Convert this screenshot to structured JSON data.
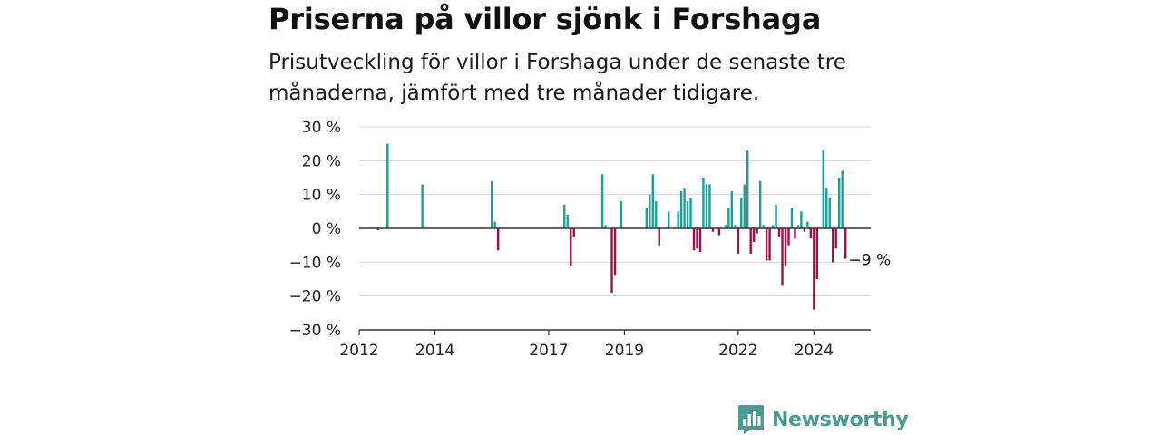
{
  "header": {
    "title": "Priserna på villor sjönk i Forshaga",
    "subtitle": "Prisutveckling för villor i Forshaga under de senaste tre månaderna, jämfört med tre månader tidigare."
  },
  "chart_data": {
    "type": "bar",
    "title": "Priserna på villor sjönk i Forshaga",
    "subtitle": "Prisutveckling för villor i Forshaga under de senaste tre månaderna, jämfört med tre månader tidigare.",
    "unit": "%",
    "xlabel": "",
    "ylabel": "",
    "ylim": [
      -30,
      30
    ],
    "xlim": [
      "2012-01",
      "2025-07"
    ],
    "y_ticks": [
      30,
      20,
      10,
      0,
      -10,
      -20,
      -30
    ],
    "y_tick_labels": [
      "30 %",
      "20 %",
      "10 %",
      "0 %",
      "−10 %",
      "−20 %",
      "−30 %"
    ],
    "x_ticks": [
      "2012-01",
      "2014-01",
      "2017-01",
      "2019-01",
      "2022-01",
      "2024-01"
    ],
    "x_tick_labels": [
      "2012",
      "2014",
      "2017",
      "2019",
      "2022",
      "2024"
    ],
    "grid": true,
    "colors": {
      "positive": "#1aa096",
      "negative": "#a30d45",
      "grid": "#d9d9d9",
      "axis": "#333333",
      "zero": "#333333"
    },
    "annotation": {
      "text": "−9 %",
      "date": "2025-04",
      "value": -9
    },
    "points": [
      {
        "date": "2012-07",
        "value": -0.5
      },
      {
        "date": "2012-10",
        "value": 25
      },
      {
        "date": "2013-09",
        "value": 13
      },
      {
        "date": "2015-07",
        "value": 14
      },
      {
        "date": "2015-08",
        "value": 2
      },
      {
        "date": "2015-09",
        "value": -6.5
      },
      {
        "date": "2017-06",
        "value": 7
      },
      {
        "date": "2017-07",
        "value": 4
      },
      {
        "date": "2017-08",
        "value": -11
      },
      {
        "date": "2017-09",
        "value": -2.5
      },
      {
        "date": "2018-06",
        "value": 16
      },
      {
        "date": "2018-07",
        "value": 1
      },
      {
        "date": "2018-09",
        "value": -19
      },
      {
        "date": "2018-10",
        "value": -14
      },
      {
        "date": "2018-12",
        "value": 8
      },
      {
        "date": "2019-08",
        "value": 6
      },
      {
        "date": "2019-09",
        "value": 10
      },
      {
        "date": "2019-10",
        "value": 16
      },
      {
        "date": "2019-11",
        "value": 8
      },
      {
        "date": "2019-12",
        "value": -5
      },
      {
        "date": "2020-03",
        "value": 5
      },
      {
        "date": "2020-06",
        "value": 5
      },
      {
        "date": "2020-07",
        "value": 11
      },
      {
        "date": "2020-08",
        "value": 12
      },
      {
        "date": "2020-09",
        "value": 8
      },
      {
        "date": "2020-10",
        "value": 9
      },
      {
        "date": "2020-11",
        "value": -6.5
      },
      {
        "date": "2020-12",
        "value": -6
      },
      {
        "date": "2021-01",
        "value": -7
      },
      {
        "date": "2021-02",
        "value": 15
      },
      {
        "date": "2021-03",
        "value": 13
      },
      {
        "date": "2021-04",
        "value": 13
      },
      {
        "date": "2021-05",
        "value": -1
      },
      {
        "date": "2021-07",
        "value": -2
      },
      {
        "date": "2021-09",
        "value": 1
      },
      {
        "date": "2021-10",
        "value": 6
      },
      {
        "date": "2021-11",
        "value": 11
      },
      {
        "date": "2021-12",
        "value": 1
      },
      {
        "date": "2022-01",
        "value": -7.5
      },
      {
        "date": "2022-02",
        "value": 9
      },
      {
        "date": "2022-03",
        "value": 13
      },
      {
        "date": "2022-04",
        "value": 23
      },
      {
        "date": "2022-05",
        "value": -7.5
      },
      {
        "date": "2022-06",
        "value": -4
      },
      {
        "date": "2022-07",
        "value": -1.5
      },
      {
        "date": "2022-08",
        "value": 14
      },
      {
        "date": "2022-09",
        "value": 1
      },
      {
        "date": "2022-10",
        "value": -9.5
      },
      {
        "date": "2022-11",
        "value": -9.5
      },
      {
        "date": "2022-12",
        "value": 1
      },
      {
        "date": "2023-01",
        "value": 7
      },
      {
        "date": "2023-02",
        "value": -2.5
      },
      {
        "date": "2023-03",
        "value": -17
      },
      {
        "date": "2023-04",
        "value": -11
      },
      {
        "date": "2023-05",
        "value": -5
      },
      {
        "date": "2023-06",
        "value": 6
      },
      {
        "date": "2023-07",
        "value": -3
      },
      {
        "date": "2023-08",
        "value": 1
      },
      {
        "date": "2023-09",
        "value": 5
      },
      {
        "date": "2023-10",
        "value": -1
      },
      {
        "date": "2023-11",
        "value": 2
      },
      {
        "date": "2023-12",
        "value": -3
      },
      {
        "date": "2024-01",
        "value": -24
      },
      {
        "date": "2024-02",
        "value": -15
      },
      {
        "date": "2024-04",
        "value": 23
      },
      {
        "date": "2024-05",
        "value": 12
      },
      {
        "date": "2024-06",
        "value": 9
      },
      {
        "date": "2024-07",
        "value": -10
      },
      {
        "date": "2024-08",
        "value": -6
      },
      {
        "date": "2024-09",
        "value": 15
      },
      {
        "date": "2024-10",
        "value": 17
      },
      {
        "date": "2024-11",
        "value": -9
      }
    ]
  },
  "brand": {
    "name": "Newsworthy",
    "logo_icon": "newsworthy-logo-icon",
    "color": "#4a9c93"
  }
}
